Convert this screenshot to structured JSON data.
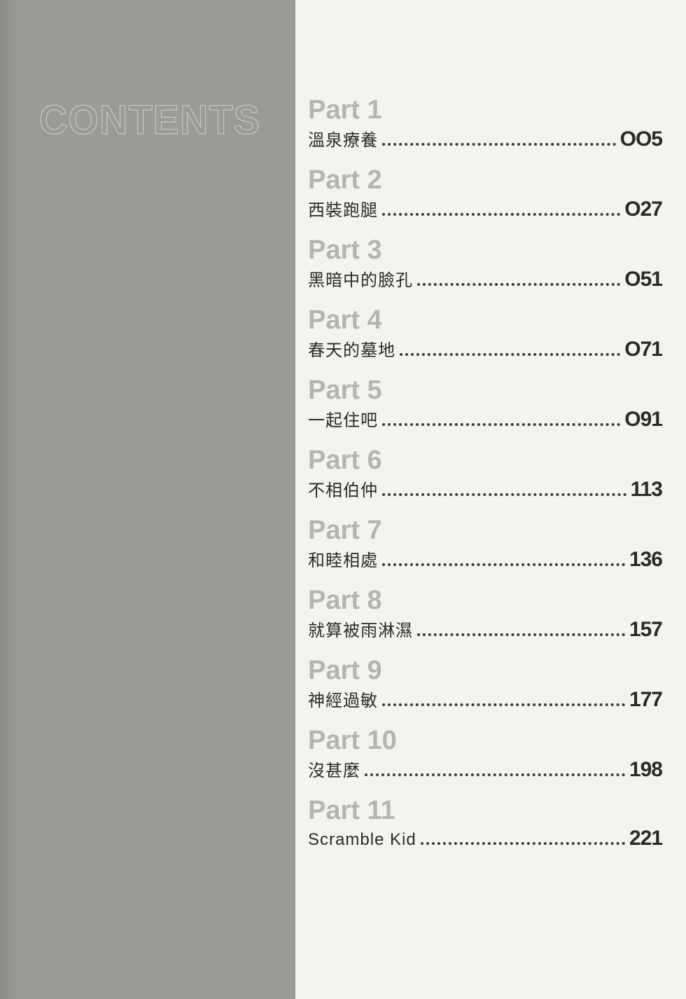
{
  "heading": "CONTENTS",
  "style": {
    "page_bg": "#f5f3f0",
    "sidebar_bg": "#9a9a96",
    "sidebar_edge": "#8a8a86",
    "heading_stroke": "#c8c7c2",
    "part_label_color": "#b6b4ae",
    "text_color": "#2a2a28",
    "dot_color": "#3a3a38",
    "heading_fontsize": 56,
    "part_fontsize": 38,
    "title_fontsize": 24,
    "pagenum_fontsize": 30
  },
  "entries": [
    {
      "part": "Part 1",
      "title": "溫泉療養",
      "page": "OO5"
    },
    {
      "part": "Part 2",
      "title": "西裝跑腿",
      "page": "O27"
    },
    {
      "part": "Part 3",
      "title": "黑暗中的臉孔",
      "page": "O51"
    },
    {
      "part": "Part 4",
      "title": "春天的墓地",
      "page": "O71"
    },
    {
      "part": "Part 5",
      "title": "一起住吧",
      "page": "O91"
    },
    {
      "part": "Part 6",
      "title": "不相伯仲",
      "page": "113"
    },
    {
      "part": "Part 7",
      "title": "和睦相處",
      "page": "136"
    },
    {
      "part": "Part 8",
      "title": "就算被雨淋濕",
      "page": "157"
    },
    {
      "part": "Part 9",
      "title": "神經過敏",
      "page": "177"
    },
    {
      "part": "Part 10",
      "title": "沒甚麼",
      "page": "198"
    },
    {
      "part": "Part 11",
      "title": "Scramble Kid",
      "page": "221"
    }
  ]
}
